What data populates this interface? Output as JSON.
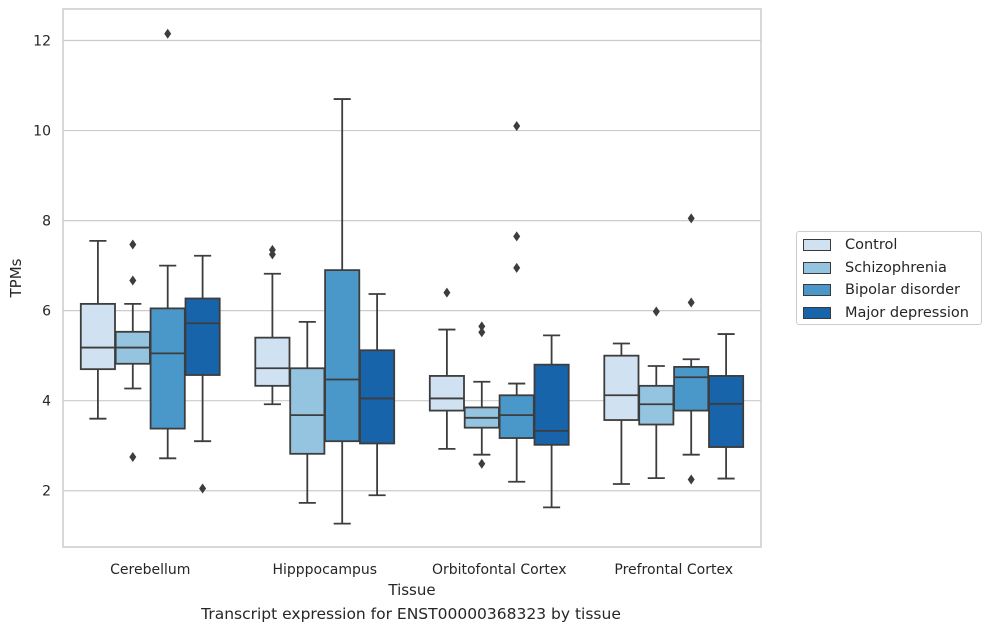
{
  "chart_data": {
    "type": "box",
    "xlabel": "Tissue",
    "ylabel": "TPMs",
    "caption": "Transcript expression for ENST00000368323 by tissue",
    "ylim": [
      0.75,
      12.7
    ],
    "yticks": [
      "2",
      "4",
      "6",
      "8",
      "10",
      "12"
    ],
    "categories": [
      "Cerebellum",
      "Hipppocampus",
      "Orbitofontal Cortex",
      "Prefrontal Cortex"
    ],
    "grid": "horizontal",
    "legend_placement": "right",
    "series": [
      {
        "name": "Control",
        "color": "#d0e1f2",
        "boxes": [
          {
            "whislo": 3.6,
            "q1": 4.7,
            "med": 5.18,
            "q3": 6.15,
            "whishi": 7.55,
            "fliers": []
          },
          {
            "whislo": 3.92,
            "q1": 4.33,
            "med": 4.72,
            "q3": 5.4,
            "whishi": 6.82,
            "fliers": [
              7.25,
              7.35
            ]
          },
          {
            "whislo": 2.93,
            "q1": 3.78,
            "med": 4.05,
            "q3": 4.55,
            "whishi": 5.58,
            "fliers": [
              6.4
            ]
          },
          {
            "whislo": 2.15,
            "q1": 3.57,
            "med": 4.12,
            "q3": 5.0,
            "whishi": 5.27,
            "fliers": []
          }
        ]
      },
      {
        "name": "Schizophrenia",
        "color": "#94c4df",
        "boxes": [
          {
            "whislo": 4.27,
            "q1": 4.82,
            "med": 5.18,
            "q3": 5.53,
            "whishi": 6.15,
            "fliers": [
              2.75,
              6.67,
              7.47
            ]
          },
          {
            "whislo": 1.73,
            "q1": 2.82,
            "med": 3.68,
            "q3": 4.72,
            "whishi": 5.75,
            "fliers": []
          },
          {
            "whislo": 2.8,
            "q1": 3.4,
            "med": 3.62,
            "q3": 3.85,
            "whishi": 4.42,
            "fliers": [
              2.6,
              5.52,
              5.65
            ]
          },
          {
            "whislo": 2.28,
            "q1": 3.47,
            "med": 3.92,
            "q3": 4.33,
            "whishi": 4.77,
            "fliers": [
              5.98
            ]
          }
        ]
      },
      {
        "name": "Bipolar disorder",
        "color": "#4a98c9",
        "boxes": [
          {
            "whislo": 2.72,
            "q1": 3.38,
            "med": 5.05,
            "q3": 6.05,
            "whishi": 7.0,
            "fliers": [
              12.15
            ]
          },
          {
            "whislo": 1.27,
            "q1": 3.1,
            "med": 4.47,
            "q3": 6.9,
            "whishi": 10.7,
            "fliers": []
          },
          {
            "whislo": 2.2,
            "q1": 3.17,
            "med": 3.68,
            "q3": 4.12,
            "whishi": 4.38,
            "fliers": [
              6.95,
              7.65,
              10.1
            ]
          },
          {
            "whislo": 2.8,
            "q1": 3.78,
            "med": 4.52,
            "q3": 4.75,
            "whishi": 4.92,
            "fliers": [
              2.25,
              6.18,
              8.05
            ]
          }
        ]
      },
      {
        "name": "Major depression",
        "color": "#1764ab",
        "boxes": [
          {
            "whislo": 3.1,
            "q1": 4.57,
            "med": 5.72,
            "q3": 6.27,
            "whishi": 7.22,
            "fliers": [
              2.05
            ]
          },
          {
            "whislo": 1.9,
            "q1": 3.05,
            "med": 4.05,
            "q3": 5.12,
            "whishi": 6.37,
            "fliers": []
          },
          {
            "whislo": 1.63,
            "q1": 3.02,
            "med": 3.33,
            "q3": 4.8,
            "whishi": 5.45,
            "fliers": []
          },
          {
            "whislo": 2.27,
            "q1": 2.97,
            "med": 3.93,
            "q3": 4.55,
            "whishi": 5.48,
            "fliers": []
          }
        ]
      }
    ]
  }
}
